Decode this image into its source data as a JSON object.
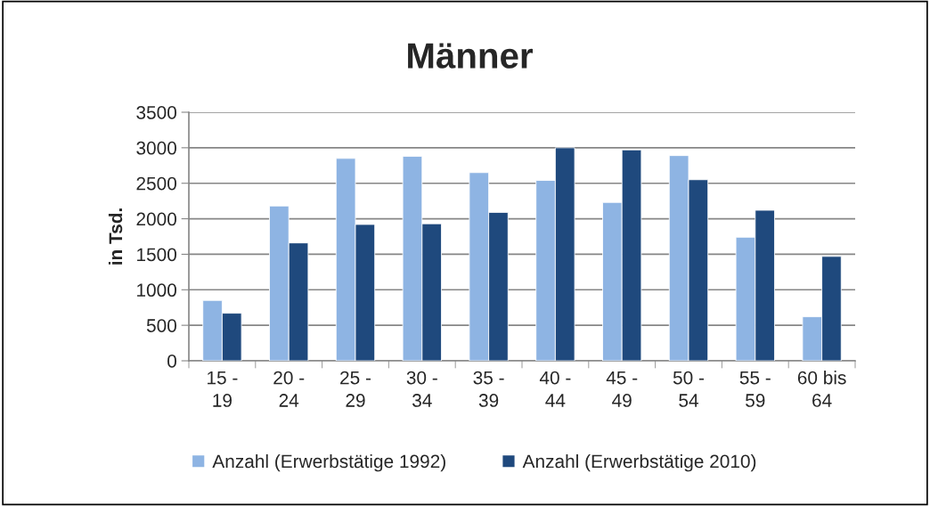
{
  "chart_data": {
    "type": "bar",
    "title": "Männer",
    "ylabel": "in Tsd.",
    "categories": [
      "15 -\n19",
      "20 -\n24",
      "25 -\n29",
      "30 -\n34",
      "35 -\n39",
      "40 -\n44",
      "45 -\n49",
      "50 -\n54",
      "55 -\n59",
      "60 bis\n64"
    ],
    "series": [
      {
        "name": "Anzahl (Erwerbstätige 1992)",
        "color": "#8eb4e3",
        "values": [
          850,
          2180,
          2850,
          2880,
          2650,
          2540,
          2230,
          2890,
          1740,
          620
        ]
      },
      {
        "name": "Anzahl (Erwerbstätige 2010)",
        "color": "#1f497d",
        "values": [
          670,
          1660,
          1920,
          1930,
          2090,
          3000,
          2970,
          2550,
          2120,
          1470
        ]
      }
    ],
    "ylim": [
      0,
      3500
    ],
    "yticks": [
      0,
      500,
      1000,
      1500,
      2000,
      2500,
      3000,
      3500
    ],
    "grid": "y",
    "legend": "bottom"
  }
}
